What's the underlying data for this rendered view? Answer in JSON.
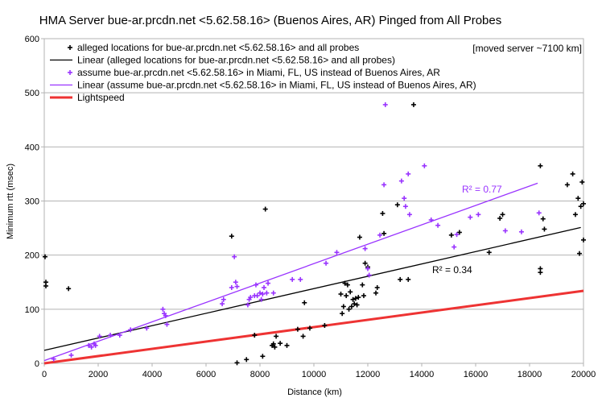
{
  "chart_data": {
    "type": "scatter",
    "title": "HMA Server bue-ar.prcdn.net <5.62.58.16> (Buenos Aires, AR) Pinged from All Probes",
    "xlabel": "Distance (km)",
    "ylabel": "Minimum rtt (msec)",
    "xlim": [
      0,
      20000
    ],
    "ylim": [
      0,
      600
    ],
    "xticks": [
      "0",
      "2000",
      "4000",
      "6000",
      "8000",
      "10000",
      "12000",
      "14000",
      "16000",
      "18000",
      "20000"
    ],
    "yticks": [
      "0",
      "100",
      "200",
      "300",
      "400",
      "500",
      "600"
    ],
    "grid": "horizontal",
    "legend_placement": "top-left",
    "annotation": "[moved server ~7100 km]",
    "colors": {
      "alleged": "#000000",
      "assumed": "#9933ff",
      "lightspeed": "#ee3333"
    },
    "series": [
      {
        "name": "alleged locations for bue-ar.prcdn.net <5.62.58.16> and all probes",
        "kind": "points",
        "color": "#000000",
        "points": [
          [
            30,
            197
          ],
          [
            60,
            150
          ],
          [
            60,
            143
          ],
          [
            900,
            138
          ],
          [
            6950,
            235
          ],
          [
            7150,
            1
          ],
          [
            7500,
            7
          ],
          [
            7800,
            52
          ],
          [
            8100,
            13
          ],
          [
            8200,
            285
          ],
          [
            8450,
            33
          ],
          [
            8500,
            36
          ],
          [
            8550,
            30
          ],
          [
            8600,
            50
          ],
          [
            8750,
            37
          ],
          [
            9000,
            33
          ],
          [
            9400,
            63
          ],
          [
            9600,
            50
          ],
          [
            9650,
            112
          ],
          [
            9850,
            65
          ],
          [
            10400,
            70
          ],
          [
            11000,
            128
          ],
          [
            11050,
            92
          ],
          [
            11100,
            105
          ],
          [
            11150,
            148
          ],
          [
            11200,
            125
          ],
          [
            11250,
            145
          ],
          [
            11300,
            100
          ],
          [
            11350,
            132
          ],
          [
            11400,
            105
          ],
          [
            11450,
            118
          ],
          [
            11500,
            110
          ],
          [
            11550,
            120
          ],
          [
            11600,
            108
          ],
          [
            11650,
            122
          ],
          [
            11700,
            233
          ],
          [
            11800,
            145
          ],
          [
            11850,
            125
          ],
          [
            11900,
            185
          ],
          [
            12000,
            178
          ],
          [
            12300,
            130
          ],
          [
            12350,
            140
          ],
          [
            12550,
            277
          ],
          [
            12600,
            240
          ],
          [
            13100,
            293
          ],
          [
            13200,
            155
          ],
          [
            13500,
            155
          ],
          [
            13700,
            478
          ],
          [
            15100,
            237
          ],
          [
            15400,
            242
          ],
          [
            16500,
            205
          ],
          [
            16900,
            268
          ],
          [
            17000,
            275
          ],
          [
            18400,
            365
          ],
          [
            18400,
            175
          ],
          [
            18400,
            168
          ],
          [
            18500,
            267
          ],
          [
            18550,
            248
          ],
          [
            19400,
            330
          ],
          [
            19600,
            350
          ],
          [
            19700,
            275
          ],
          [
            19800,
            305
          ],
          [
            19850,
            203
          ],
          [
            19900,
            290
          ],
          [
            19950,
            335
          ],
          [
            20000,
            228
          ],
          [
            20000,
            295
          ]
        ]
      },
      {
        "name": "Linear (alleged locations for bue-ar.prcdn.net <5.62.58.16> and all probes)",
        "kind": "line",
        "color": "#000000",
        "points": [
          [
            0,
            24
          ],
          [
            19900,
            251
          ]
        ],
        "r2_label": "R² = 0.34"
      },
      {
        "name": "assume bue-ar.prcdn.net <5.62.58.16> in Miami, FL, US instead of Buenos Aires, AR",
        "kind": "points",
        "color": "#9933ff",
        "points": [
          [
            350,
            8
          ],
          [
            1000,
            15
          ],
          [
            1650,
            33
          ],
          [
            1750,
            30
          ],
          [
            1850,
            36
          ],
          [
            1900,
            33
          ],
          [
            2050,
            50
          ],
          [
            2450,
            52
          ],
          [
            2800,
            52
          ],
          [
            3200,
            62
          ],
          [
            3800,
            65
          ],
          [
            4400,
            100
          ],
          [
            4450,
            92
          ],
          [
            4500,
            88
          ],
          [
            4550,
            72
          ],
          [
            6600,
            110
          ],
          [
            6650,
            118
          ],
          [
            6950,
            140
          ],
          [
            7050,
            197
          ],
          [
            7100,
            150
          ],
          [
            7150,
            142
          ],
          [
            7550,
            108
          ],
          [
            7600,
            118
          ],
          [
            7650,
            122
          ],
          [
            7800,
            125
          ],
          [
            7850,
            145
          ],
          [
            7900,
            125
          ],
          [
            8000,
            130
          ],
          [
            8050,
            118
          ],
          [
            8100,
            128
          ],
          [
            8150,
            140
          ],
          [
            8250,
            130
          ],
          [
            8300,
            148
          ],
          [
            8500,
            130
          ],
          [
            9200,
            155
          ],
          [
            9500,
            155
          ],
          [
            10450,
            185
          ],
          [
            10850,
            205
          ],
          [
            11900,
            212
          ],
          [
            12000,
            175
          ],
          [
            12050,
            163
          ],
          [
            12450,
            237
          ],
          [
            12600,
            330
          ],
          [
            12650,
            478
          ],
          [
            13250,
            337
          ],
          [
            13350,
            305
          ],
          [
            13400,
            290
          ],
          [
            13500,
            350
          ],
          [
            13550,
            275
          ],
          [
            14100,
            365
          ],
          [
            14350,
            265
          ],
          [
            14600,
            255
          ],
          [
            15200,
            215
          ],
          [
            15300,
            238
          ],
          [
            15800,
            270
          ],
          [
            16100,
            275
          ],
          [
            17100,
            245
          ],
          [
            17700,
            243
          ],
          [
            18350,
            278
          ]
        ]
      },
      {
        "name": "Linear (assume bue-ar.prcdn.net <5.62.58.16> in Miami, FL, US instead of Buenos Aires, AR)",
        "kind": "line",
        "color": "#9933ff",
        "points": [
          [
            0,
            5
          ],
          [
            18300,
            333
          ]
        ],
        "r2_label": "R² = 0.77"
      },
      {
        "name": "Lightspeed",
        "kind": "line",
        "color": "#ee3333",
        "points": [
          [
            0,
            0
          ],
          [
            20000,
            134
          ]
        ]
      }
    ]
  }
}
